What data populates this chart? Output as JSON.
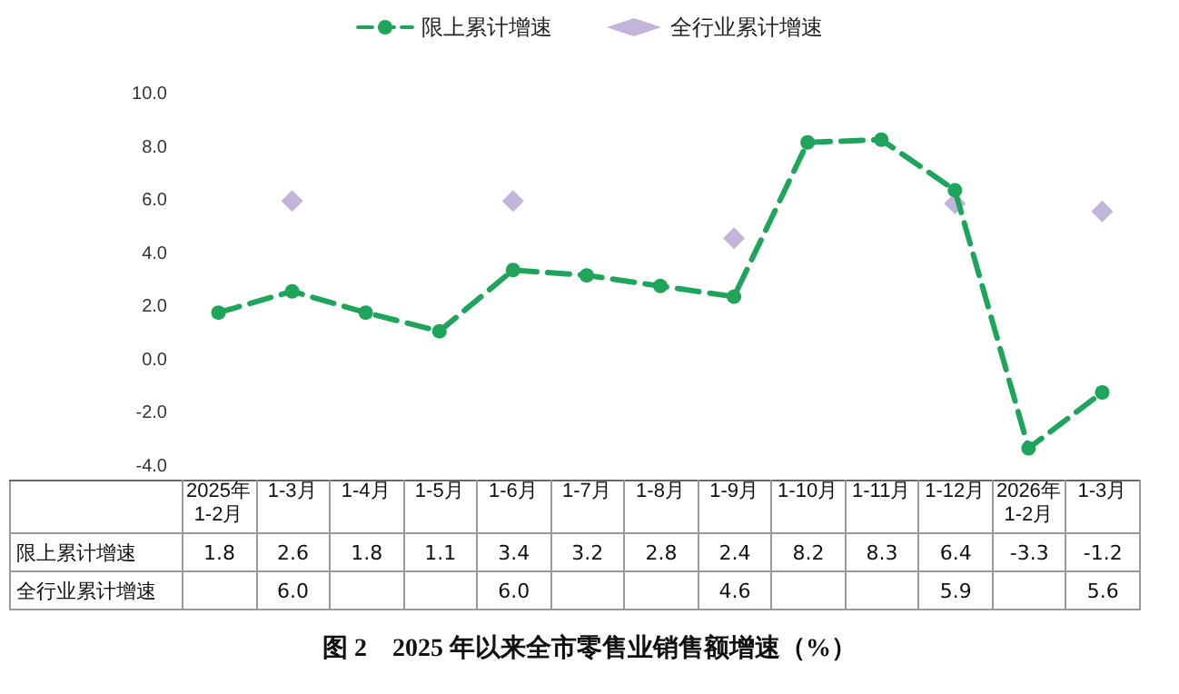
{
  "chart_data": {
    "type": "line",
    "title": "图 2　2025 年以来全市零售业销售额增速（%）",
    "categories": [
      "2025年1-2月",
      "1-3月",
      "1-4月",
      "1-5月",
      "1-6月",
      "1-7月",
      "1-8月",
      "1-9月",
      "1-10月",
      "1-11月",
      "1-12月",
      "2026年1-2月",
      "1-3月"
    ],
    "series": [
      {
        "name": "限上累计增速",
        "type": "line",
        "color": "#1fa55b",
        "marker": "circle",
        "line_style": "dashed",
        "values": [
          1.8,
          2.6,
          1.8,
          1.1,
          3.4,
          3.2,
          2.8,
          2.4,
          8.2,
          8.3,
          6.4,
          -3.3,
          -1.2
        ],
        "value_labels": [
          "1.8",
          "2.6",
          "1.8",
          "1.1",
          "3.4",
          "3.2",
          "2.8",
          "2.4",
          "8.2",
          "8.3",
          "6.4",
          "-3.3",
          "-1.2"
        ]
      },
      {
        "name": "全行业累计增速",
        "type": "scatter",
        "color": "#b3a3d0",
        "marker": "diamond",
        "values": [
          null,
          6.0,
          null,
          null,
          6.0,
          null,
          null,
          4.6,
          null,
          null,
          5.9,
          null,
          5.6
        ],
        "value_labels": [
          null,
          "6.0",
          null,
          null,
          "6.0",
          null,
          null,
          "4.6",
          null,
          null,
          "5.9",
          null,
          "5.6"
        ]
      }
    ],
    "ylim": [
      -4,
      10
    ],
    "yticks": [
      {
        "value": -4,
        "label": "-4.0"
      },
      {
        "value": -2,
        "label": "-2.0"
      },
      {
        "value": 0,
        "label": "0.0"
      },
      {
        "value": 2,
        "label": "2.0"
      },
      {
        "value": 4,
        "label": "4.0"
      },
      {
        "value": 6,
        "label": "6.0"
      },
      {
        "value": 8,
        "label": "8.0"
      },
      {
        "value": 10,
        "label": "10.0"
      }
    ],
    "grid": false,
    "legend": "top"
  }
}
